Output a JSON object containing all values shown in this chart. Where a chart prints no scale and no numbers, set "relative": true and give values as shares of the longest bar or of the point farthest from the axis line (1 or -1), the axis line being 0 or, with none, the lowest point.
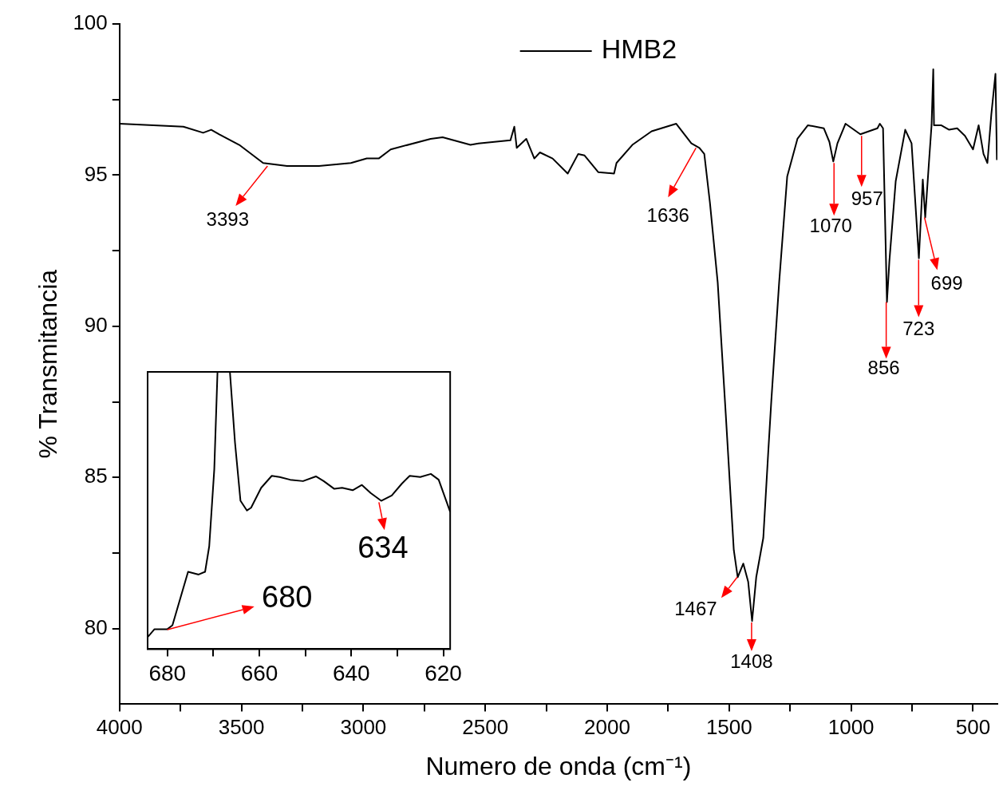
{
  "chart_data": [
    {
      "type": "line",
      "xlabel": "Numero de onda (cm⁻¹)",
      "ylabel": "% Transmitancia",
      "legend": "top",
      "grid": false,
      "marker": "none",
      "line_style": "solid",
      "xlim": [
        4000,
        400
      ],
      "ylim": [
        77.5,
        100
      ],
      "xticks": [
        4000,
        {
          "value": 3750,
          "label": null
        },
        3500,
        {
          "value": 3250,
          "label": null
        },
        3000,
        {
          "value": 2750,
          "label": null
        },
        2500,
        {
          "value": 2250,
          "label": null
        },
        2000,
        {
          "value": 1750,
          "label": null
        },
        1500,
        {
          "value": 1250,
          "label": null
        },
        1000,
        {
          "value": 750,
          "label": null
        },
        500
      ],
      "yticks": [
        80,
        {
          "value": 82.5,
          "label": null
        },
        85,
        {
          "value": 87.5,
          "label": null
        },
        90,
        {
          "value": 92.5,
          "label": null
        },
        95,
        {
          "value": 97.5,
          "label": null
        },
        100
      ],
      "series": [
        {
          "name": "HMB2",
          "color": "#000000",
          "x": [
            4000,
            3738,
            3657,
            3624,
            3591,
            3509,
            3411,
            3313,
            3182,
            3051,
            2986,
            2937,
            2888,
            2724,
            2675,
            2561,
            2528,
            2397,
            2381,
            2371,
            2332,
            2299,
            2276,
            2224,
            2162,
            2119,
            2093,
            2037,
            1972,
            1962,
            1897,
            1818,
            1717,
            1655,
            1622,
            1602,
            1579,
            1547,
            1514,
            1481,
            1465,
            1442,
            1422,
            1406,
            1389,
            1360,
            1340,
            1327,
            1295,
            1262,
            1220,
            1177,
            1112,
            1089,
            1073,
            1056,
            1023,
            962,
            892,
            882,
            869,
            853,
            843,
            817,
            778,
            752,
            722,
            706,
            696,
            680,
            670,
            663,
            660,
            631,
            598,
            565,
            533,
            500,
            477,
            457,
            441,
            425,
            408,
            402
          ],
          "values": [
            96.7,
            96.6,
            96.4,
            96.5,
            96.35,
            96.0,
            95.4,
            95.3,
            95.3,
            95.4,
            95.55,
            95.55,
            95.85,
            96.2,
            96.25,
            96.0,
            96.05,
            96.15,
            96.6,
            95.9,
            96.2,
            95.55,
            95.75,
            95.55,
            95.05,
            95.7,
            95.65,
            95.1,
            95.05,
            95.4,
            96.0,
            96.45,
            96.7,
            96.05,
            95.9,
            95.7,
            94.1,
            91.45,
            87.1,
            82.6,
            81.7,
            82.15,
            81.55,
            80.25,
            81.7,
            83.0,
            85.8,
            87.55,
            91.45,
            94.95,
            96.2,
            96.65,
            96.55,
            96.1,
            95.45,
            96.05,
            96.7,
            96.35,
            96.55,
            96.7,
            96.55,
            90.8,
            92.15,
            94.8,
            96.5,
            96.05,
            92.25,
            94.85,
            93.6,
            95.5,
            96.65,
            98.5,
            96.65,
            96.65,
            96.5,
            96.55,
            96.3,
            95.85,
            96.65,
            95.7,
            95.4,
            97.0,
            98.35,
            95.5
          ]
        }
      ],
      "annotations": [
        {
          "text": "3393",
          "x": 3393,
          "y": 95.3
        },
        {
          "text": "1636",
          "x": 1636,
          "y": 95.9
        },
        {
          "text": "1467",
          "x": 1467,
          "y": 81.7
        },
        {
          "text": "1408",
          "x": 1408,
          "y": 80.2
        },
        {
          "text": "1070",
          "x": 1070,
          "y": 95.4
        },
        {
          "text": "957",
          "x": 957,
          "y": 96.3
        },
        {
          "text": "856",
          "x": 856,
          "y": 90.8
        },
        {
          "text": "723",
          "x": 723,
          "y": 92.2
        },
        {
          "text": "699",
          "x": 699,
          "y": 93.6
        }
      ]
    },
    {
      "type": "line",
      "relative": true,
      "tick_labels": "x",
      "marker": "none",
      "line_style": "solid",
      "xlim": [
        684.3,
        618.5
      ],
      "xticks": [
        680,
        {
          "value": 670,
          "label": null
        },
        660,
        {
          "value": 650,
          "label": null
        },
        640,
        {
          "value": 630,
          "label": null
        },
        620
      ],
      "series": [
        {
          "color": "#000000",
          "x": [
            684.3,
            682.8,
            680,
            678.9,
            675.5,
            673.2,
            671.8,
            670.9,
            669.8,
            669.1,
            666.4,
            665.3,
            664.1,
            662.7,
            661.8,
            659.6,
            657.3,
            655.6,
            653.3,
            650.5,
            647.7,
            646.0,
            643.7,
            642.0,
            639.7,
            637.7,
            635.8,
            633.5,
            631.2,
            629.0,
            627.3,
            625.0,
            622.7,
            621.0,
            618.5
          ],
          "values": [
            0.043,
            0.072,
            0.072,
            0.086,
            0.279,
            0.269,
            0.279,
            0.371,
            0.649,
            1,
            1,
            0.746,
            0.535,
            0.5,
            0.51,
            0.582,
            0.625,
            0.621,
            0.611,
            0.606,
            0.623,
            0.606,
            0.578,
            0.582,
            0.573,
            0.592,
            0.563,
            0.535,
            0.554,
            0.597,
            0.625,
            0.621,
            0.632,
            0.611,
            0.495
          ]
        }
      ],
      "annotations": [
        {
          "text": "634",
          "x": 634,
          "y": 0.53
        },
        {
          "text": "680",
          "x": 680,
          "y": 0.07
        }
      ]
    }
  ]
}
